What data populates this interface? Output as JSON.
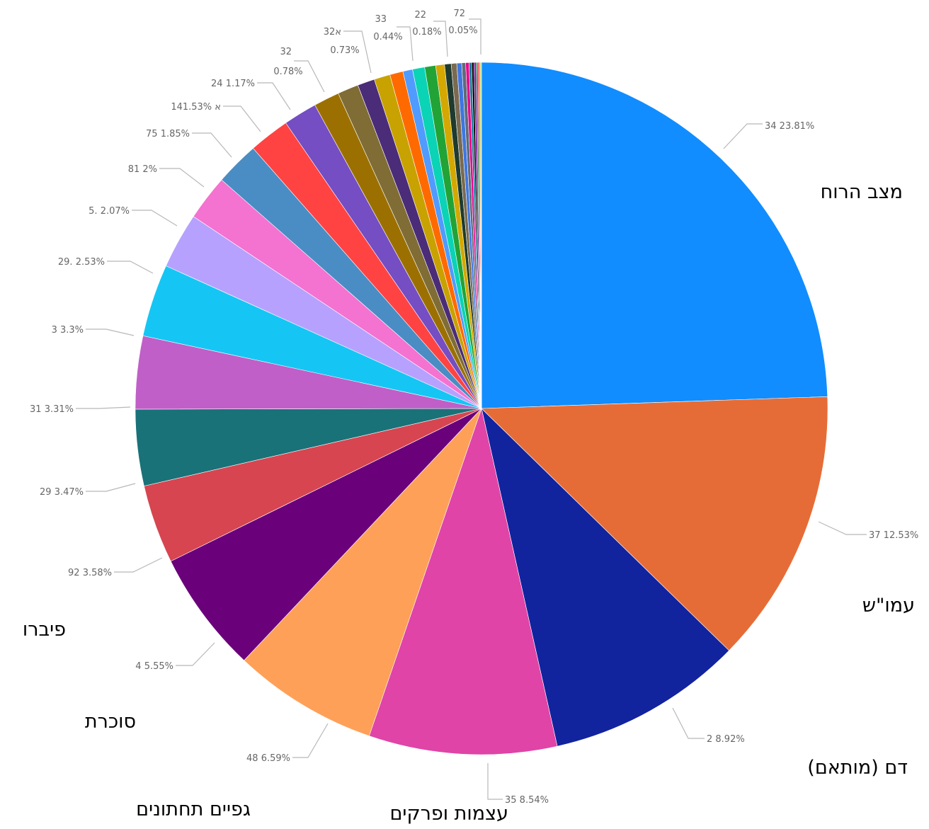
{
  "chart_data": {
    "type": "pie",
    "title": "",
    "slices": [
      {
        "label": "34 23.81%",
        "value": 23.81,
        "color": "#118DFF"
      },
      {
        "label": "37 12.53%",
        "value": 12.53,
        "color": "#E66C37"
      },
      {
        "label": "2 8.92%",
        "value": 8.92,
        "color": "#12239E"
      },
      {
        "label": "35 8.54%",
        "value": 8.54,
        "color": "#E044A7"
      },
      {
        "label": "48 6.59%",
        "value": 6.59,
        "color": "#FFA058"
      },
      {
        "label": "4 5.55%",
        "value": 5.55,
        "color": "#6B007B"
      },
      {
        "label": "92 3.58%",
        "value": 3.58,
        "color": "#D64550"
      },
      {
        "label": "29 3.47%",
        "value": 3.47,
        "color": "#197278"
      },
      {
        "label": "31 3.31%",
        "value": 3.31,
        "color": "#C05FC7"
      },
      {
        "label": "3 3.3%",
        "value": 3.3,
        "color": "#15C6F4"
      },
      {
        "label": "29. 2.53%",
        "value": 2.53,
        "color": "#B6A1FE"
      },
      {
        "label": "5. 2.07%",
        "value": 2.07,
        "color": "#F472D0"
      },
      {
        "label": "81 2%",
        "value": 2.0,
        "color": "#4A8DC4"
      },
      {
        "label": "75 1.85%",
        "value": 1.85,
        "color": "#FF4343"
      },
      {
        "label": "14א 1.53%",
        "value": 1.53,
        "color": "#744EC2"
      },
      {
        "label": "24 1.17%",
        "value": 1.17,
        "color": "#9C7000"
      },
      {
        "label": "",
        "value": 0.95,
        "color": "#7F6D35"
      },
      {
        "label": "32 0.78%",
        "value": 0.78,
        "color": "#4B2C78"
      },
      {
        "label": "32א 0.73%",
        "value": 0.73,
        "color": "#C8A200"
      },
      {
        "label": "",
        "value": 0.6,
        "color": "#FF6A00"
      },
      {
        "label": "33 0.44%",
        "value": 0.44,
        "color": "#4F9BFF"
      },
      {
        "label": "",
        "value": 0.55,
        "color": "#0BD3B5"
      },
      {
        "label": "",
        "value": 0.5,
        "color": "#22A336"
      },
      {
        "label": "",
        "value": 0.4,
        "color": "#D4A800"
      },
      {
        "label": "",
        "value": 0.3,
        "color": "#1F3A2E"
      },
      {
        "label": "",
        "value": 0.25,
        "color": "#7A6A50"
      },
      {
        "label": "",
        "value": 0.22,
        "color": "#3F76E0"
      },
      {
        "label": "22 0.18%",
        "value": 0.18,
        "color": "#5F6B7A"
      },
      {
        "label": "",
        "value": 0.15,
        "color": "#E9008A"
      },
      {
        "label": "",
        "value": 0.12,
        "color": "#1A7A9E"
      },
      {
        "label": "",
        "value": 0.1,
        "color": "#000000"
      },
      {
        "label": "",
        "value": 0.1,
        "color": "#7B1FA2"
      },
      {
        "label": "",
        "value": 0.08,
        "color": "#2E8B57"
      },
      {
        "label": "",
        "value": 0.07,
        "color": "#FF3D3D"
      },
      {
        "label": "72 0.05%",
        "value": 0.05,
        "color": "#8BC34A"
      },
      {
        "label": "",
        "value": 0.04,
        "color": "#F4C20D"
      }
    ],
    "category_labels": [
      "מצב הרוח",
      "עמו\"ש",
      "דם (מותאם)",
      "עצמות ופרקים",
      "גפיים תחתונים",
      "סוכרת",
      "פיברו"
    ]
  }
}
